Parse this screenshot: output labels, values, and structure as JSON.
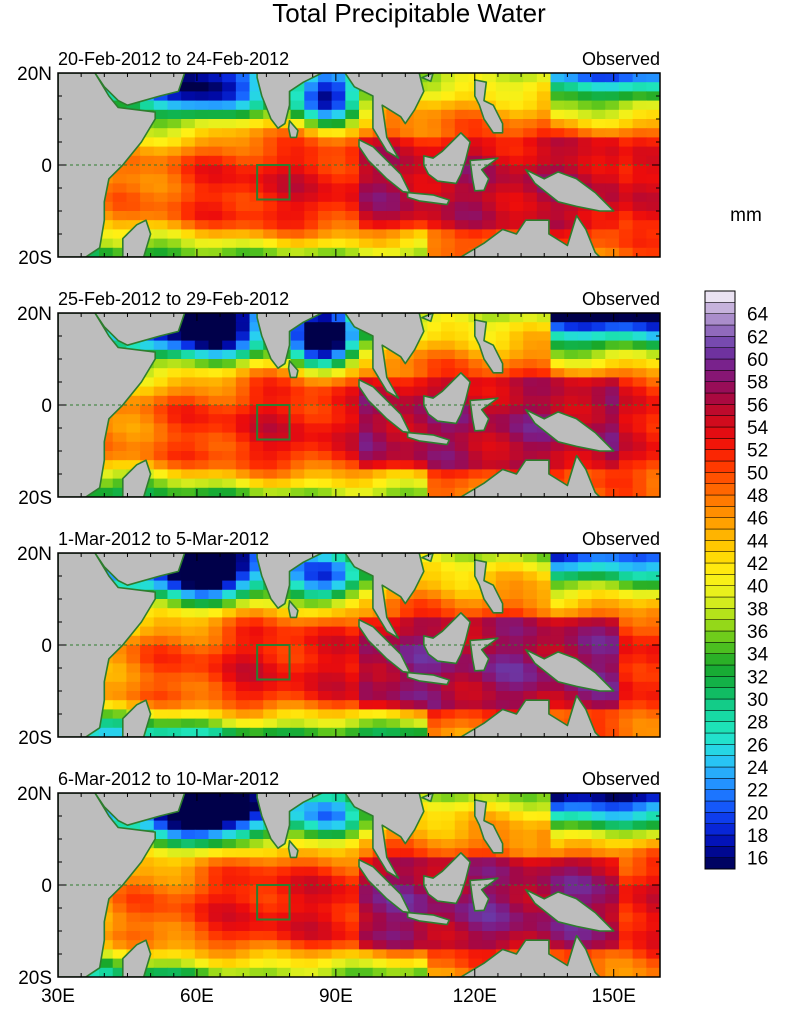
{
  "chart_data": {
    "type": "heatmap",
    "title": "Total Precipitable Water",
    "units": "mm",
    "x_ticks": [
      "30E",
      "60E",
      "90E",
      "120E",
      "150E"
    ],
    "x_tick_values": [
      30,
      60,
      90,
      120,
      150
    ],
    "xlim": [
      30,
      160
    ],
    "y_ticks": [
      "20N",
      "0",
      "20S"
    ],
    "y_tick_values": [
      20,
      0,
      -20
    ],
    "ylim": [
      -20,
      20
    ],
    "box_region": {
      "lon": [
        73,
        80
      ],
      "lat": [
        -7.5,
        0
      ]
    },
    "panels": [
      {
        "left_title": "20-Feb-2012 to 24-Feb-2012",
        "right_title": "Observed"
      },
      {
        "left_title": "25-Feb-2012 to 29-Feb-2012",
        "right_title": "Observed"
      },
      {
        "left_title": "1-Mar-2012 to 5-Mar-2012",
        "right_title": "Observed"
      },
      {
        "left_title": "6-Mar-2012 to 10-Mar-2012",
        "right_title": "Observed"
      }
    ],
    "colorbar": {
      "min": 15,
      "max": 66,
      "step": 1,
      "labels": [
        "64",
        "62",
        "60",
        "58",
        "56",
        "54",
        "52",
        "50",
        "48",
        "46",
        "44",
        "42",
        "40",
        "38",
        "36",
        "34",
        "32",
        "30",
        "28",
        "26",
        "24",
        "22",
        "20",
        "18",
        "16"
      ]
    }
  }
}
